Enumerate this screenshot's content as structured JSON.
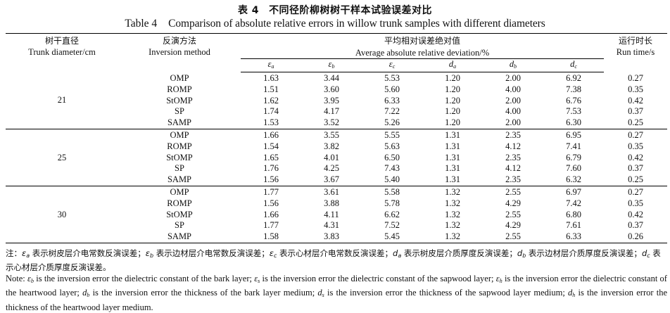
{
  "caption": {
    "cn_number": "表 4",
    "cn_title": "不同径阶柳树树干样本试验误差对比",
    "en_number": "Table 4",
    "en_title": "Comparison of absolute relative errors in willow trunk samples with different diameters"
  },
  "headers": {
    "diameter_cn": "树干直径",
    "diameter_en": "Trunk diameter/cm",
    "method_cn": "反演方法",
    "method_en": "Inversion method",
    "avg_cn": "平均相对误差绝对值",
    "avg_en": "Average absolute relative deviation/%",
    "runtime_cn": "运行时长",
    "runtime_en": "Run time/s",
    "columns": [
      {
        "base": "ε",
        "sub": "a"
      },
      {
        "base": "ε",
        "sub": "b"
      },
      {
        "base": "ε",
        "sub": "c"
      },
      {
        "base": "d",
        "sub": "a"
      },
      {
        "base": "d",
        "sub": "b"
      },
      {
        "base": "d",
        "sub": "c"
      }
    ]
  },
  "groups": [
    {
      "diameter": "21",
      "rows": [
        {
          "method": "OMP",
          "values": [
            "1.63",
            "3.44",
            "5.53",
            "1.20",
            "2.00",
            "6.92"
          ],
          "runtime": "0.27"
        },
        {
          "method": "ROMP",
          "values": [
            "1.51",
            "3.60",
            "5.60",
            "1.20",
            "4.00",
            "7.38"
          ],
          "runtime": "0.35"
        },
        {
          "method": "StOMP",
          "values": [
            "1.62",
            "3.95",
            "6.33",
            "1.20",
            "2.00",
            "6.76"
          ],
          "runtime": "0.42"
        },
        {
          "method": "SP",
          "values": [
            "1.74",
            "4.17",
            "7.22",
            "1.20",
            "4.00",
            "7.53"
          ],
          "runtime": "0.37"
        },
        {
          "method": "SAMP",
          "values": [
            "1.53",
            "3.52",
            "5.26",
            "1.20",
            "2.00",
            "6.30"
          ],
          "runtime": "0.25"
        }
      ]
    },
    {
      "diameter": "25",
      "rows": [
        {
          "method": "OMP",
          "values": [
            "1.66",
            "3.55",
            "5.55",
            "1.31",
            "2.35",
            "6.95"
          ],
          "runtime": "0.27"
        },
        {
          "method": "ROMP",
          "values": [
            "1.54",
            "3.82",
            "5.63",
            "1.31",
            "4.12",
            "7.41"
          ],
          "runtime": "0.35"
        },
        {
          "method": "StOMP",
          "values": [
            "1.65",
            "4.01",
            "6.50",
            "1.31",
            "2.35",
            "6.79"
          ],
          "runtime": "0.42"
        },
        {
          "method": "SP",
          "values": [
            "1.76",
            "4.25",
            "7.43",
            "1.31",
            "4.12",
            "7.60"
          ],
          "runtime": "0.37"
        },
        {
          "method": "SAMP",
          "values": [
            "1.56",
            "3.67",
            "5.40",
            "1.31",
            "2.35",
            "6.32"
          ],
          "runtime": "0.25"
        }
      ]
    },
    {
      "diameter": "30",
      "rows": [
        {
          "method": "OMP",
          "values": [
            "1.77",
            "3.61",
            "5.58",
            "1.32",
            "2.55",
            "6.97"
          ],
          "runtime": "0.27"
        },
        {
          "method": "ROMP",
          "values": [
            "1.56",
            "3.88",
            "5.78",
            "1.32",
            "4.29",
            "7.42"
          ],
          "runtime": "0.35"
        },
        {
          "method": "StOMP",
          "values": [
            "1.66",
            "4.11",
            "6.62",
            "1.32",
            "2.55",
            "6.80"
          ],
          "runtime": "0.42"
        },
        {
          "method": "SP",
          "values": [
            "1.77",
            "4.31",
            "7.52",
            "1.32",
            "4.29",
            "7.61"
          ],
          "runtime": "0.37"
        },
        {
          "method": "SAMP",
          "values": [
            "1.58",
            "3.83",
            "5.45",
            "1.32",
            "2.55",
            "6.33"
          ],
          "runtime": "0.26"
        }
      ]
    }
  ],
  "note_cn": [
    {
      "t": "注："
    },
    {
      "t": "ε",
      "i": true
    },
    {
      "t": "a",
      "s": true
    },
    {
      "t": " 表示树皮层介电常数反演误差；"
    },
    {
      "t": "ε",
      "i": true
    },
    {
      "t": "b",
      "s": true
    },
    {
      "t": " 表示边材层介电常数反演误差；"
    },
    {
      "t": "ε",
      "i": true
    },
    {
      "t": "c",
      "s": true
    },
    {
      "t": " 表示心材层介电常数反演误差；"
    },
    {
      "t": "d",
      "i": true
    },
    {
      "t": "a",
      "s": true
    },
    {
      "t": " 表示树皮层介质厚度反演误差；"
    },
    {
      "t": "d",
      "i": true
    },
    {
      "t": "b",
      "s": true
    },
    {
      "t": " 表示边材层介质厚度反演误差；"
    },
    {
      "t": "d",
      "i": true
    },
    {
      "t": "c",
      "s": true
    },
    {
      "t": " 表示心材层介质厚度反演误差。"
    }
  ],
  "note_en": [
    {
      "t": "Note: "
    },
    {
      "t": "ε",
      "i": true
    },
    {
      "t": "b",
      "s": true
    },
    {
      "t": " is the inversion error the dielectric constant of the bark layer; "
    },
    {
      "t": "ε",
      "i": true
    },
    {
      "t": "s",
      "s": true
    },
    {
      "t": " is the inversion error the dielectric constant of the sapwood layer; "
    },
    {
      "t": "ε",
      "i": true
    },
    {
      "t": "h",
      "s": true
    },
    {
      "t": " is the inversion error the dielectric constant of the heartwood layer; "
    },
    {
      "t": "d",
      "i": true
    },
    {
      "t": "b",
      "s": true
    },
    {
      "t": " is the inversion error the thickness of the bark layer medium; "
    },
    {
      "t": "d",
      "i": true
    },
    {
      "t": "s",
      "s": true
    },
    {
      "t": " is the inversion error the thickness of the sapwood layer medium; "
    },
    {
      "t": "d",
      "i": true
    },
    {
      "t": "h",
      "s": true
    },
    {
      "t": " is the inversion error the thickness of the heartwood layer medium."
    }
  ]
}
